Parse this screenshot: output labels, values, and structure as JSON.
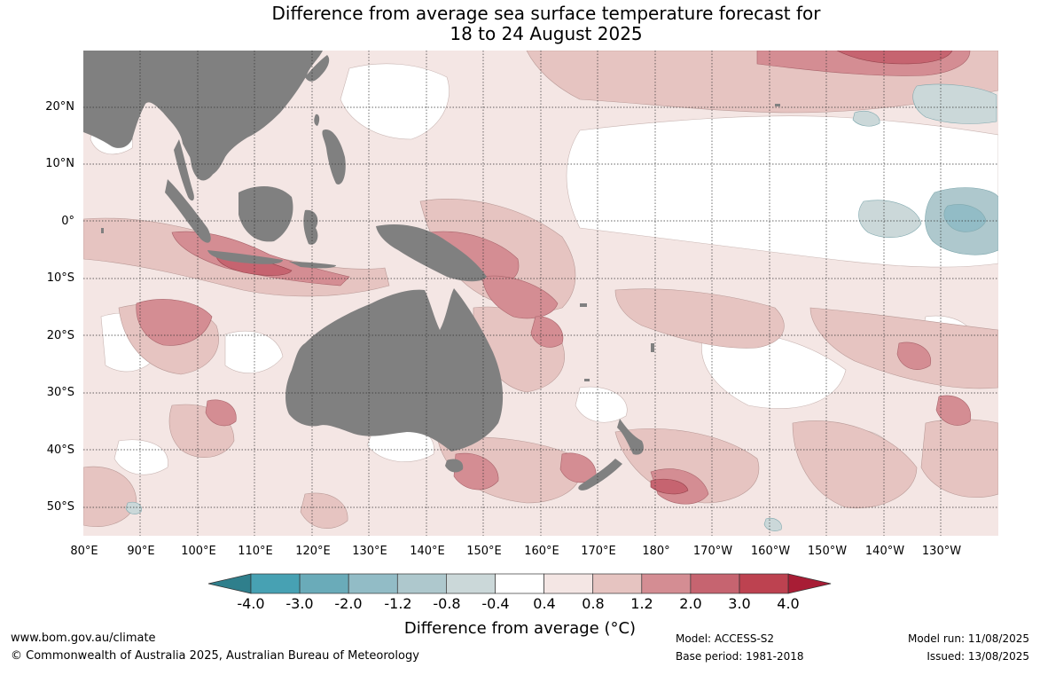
{
  "title_line1": "Difference from average sea surface temperature forecast for",
  "title_line2": "18 to 24 August 2025",
  "latitude_labels": [
    "20°N",
    "10°N",
    "0°",
    "10°S",
    "20°S",
    "30°S",
    "40°S",
    "50°S"
  ],
  "longitude_labels": [
    "80°E",
    "90°E",
    "100°E",
    "110°E",
    "120°E",
    "130°E",
    "140°E",
    "150°E",
    "160°E",
    "170°E",
    "180°",
    "170°W",
    "160°W",
    "150°W",
    "140°W",
    "130°W"
  ],
  "colorbar": {
    "title": "Difference from average (°C)",
    "ticks": [
      "-4.0",
      "-3.0",
      "-2.0",
      "-1.2",
      "-0.8",
      "-0.4",
      "0.4",
      "0.8",
      "1.2",
      "2.0",
      "3.0",
      "4.0"
    ],
    "colors": [
      "#2f7f8c",
      "#47a1b3",
      "#6aabb9",
      "#92bcc6",
      "#aec8cd",
      "#cbd8d9",
      "#ffffff",
      "#f4e6e4",
      "#e6c4c1",
      "#d48d93",
      "#c66470",
      "#bd4250",
      "#a81d35"
    ]
  },
  "land_color": "#808080",
  "footer": {
    "website": "www.bom.gov.au/climate",
    "copyright": "© Commonwealth of Australia 2025, Australian Bureau of Meteorology",
    "model": "Model: ACCESS-S2",
    "base_period": "Base period: 1981-2018",
    "model_run": "Model run: 11/08/2025",
    "issued": "Issued: 13/08/2025"
  }
}
